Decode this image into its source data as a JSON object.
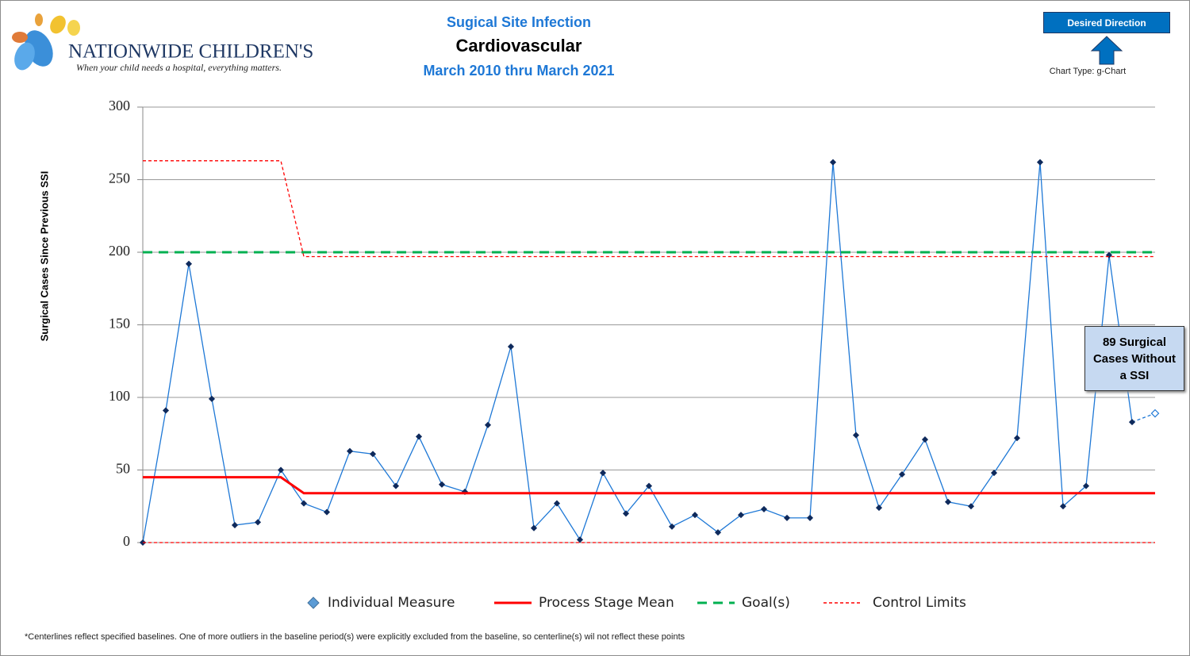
{
  "header": {
    "logo": "NATIONWIDE CHILDREN'S",
    "tagline": "When your child needs a hospital, everything matters.",
    "desired_direction": "Desired Direction",
    "chart_type_label": "Chart Type: g-Chart"
  },
  "chart_data": {
    "type": "line",
    "pretitle": "Sugical Site Infection",
    "title": "Cardiovascular",
    "subtitle": "March 2010 thru March 2021",
    "y_label": "Surgical Cases Since Previous SSI",
    "ylim": [
      0,
      300
    ],
    "yticks": [
      0,
      50,
      100,
      150,
      200,
      250,
      300
    ],
    "grid": true,
    "categories": [
      null,
      null,
      null,
      null,
      null,
      null,
      null,
      null,
      null,
      null,
      null,
      null,
      null,
      null,
      null,
      null,
      null,
      null,
      null,
      null,
      null,
      null,
      null,
      null,
      null,
      null,
      null,
      null,
      null,
      null,
      null,
      null,
      null,
      null,
      null,
      null,
      null,
      null,
      null,
      null,
      null,
      null,
      null,
      null,
      null
    ],
    "series": [
      {
        "name": "Individual Measure",
        "color": "#1e78d6",
        "marker_color": "#0f2a5c",
        "style": "marker",
        "values": [
          0,
          91,
          192,
          99,
          12,
          14,
          50,
          27,
          21,
          63,
          61,
          39,
          73,
          40,
          35,
          81,
          135,
          10,
          27,
          2,
          48,
          20,
          39,
          11,
          19,
          7,
          19,
          23,
          17,
          17,
          262,
          74,
          24,
          47,
          71,
          28,
          25,
          48,
          72,
          262,
          25,
          39,
          198,
          83,
          89
        ]
      },
      {
        "name": "Process Stage Mean",
        "color": "#ff0000",
        "style": "solid",
        "values": [
          45,
          45,
          45,
          45,
          45,
          45,
          45,
          34,
          34,
          34,
          34,
          34,
          34,
          34,
          34,
          34,
          34,
          34,
          34,
          34,
          34,
          34,
          34,
          34,
          34,
          34,
          34,
          34,
          34,
          34,
          34,
          34,
          34,
          34,
          34,
          34,
          34,
          34,
          34,
          34,
          34,
          34,
          34,
          34,
          34
        ]
      },
      {
        "name": "Goal(s)",
        "color": "#00b050",
        "style": "dashed",
        "values": [
          200,
          200,
          200,
          200,
          200,
          200,
          200,
          200,
          200,
          200,
          200,
          200,
          200,
          200,
          200,
          200,
          200,
          200,
          200,
          200,
          200,
          200,
          200,
          200,
          200,
          200,
          200,
          200,
          200,
          200,
          200,
          200,
          200,
          200,
          200,
          200,
          200,
          200,
          200,
          200,
          200,
          200,
          200,
          200,
          200
        ]
      },
      {
        "name": "Control Limits",
        "color": "#ff0000",
        "style": "dotted",
        "upper": [
          263,
          263,
          263,
          263,
          263,
          263,
          263,
          197,
          197,
          197,
          197,
          197,
          197,
          197,
          197,
          197,
          197,
          197,
          197,
          197,
          197,
          197,
          197,
          197,
          197,
          197,
          197,
          197,
          197,
          197,
          197,
          197,
          197,
          197,
          197,
          197,
          197,
          197,
          197,
          197,
          197,
          197,
          197,
          197,
          197
        ],
        "lower": [
          0,
          0,
          0,
          0,
          0,
          0,
          0,
          0,
          0,
          0,
          0,
          0,
          0,
          0,
          0,
          0,
          0,
          0,
          0,
          0,
          0,
          0,
          0,
          0,
          0,
          0,
          0,
          0,
          0,
          0,
          0,
          0,
          0,
          0,
          0,
          0,
          0,
          0,
          0,
          0,
          0,
          0,
          0,
          0,
          0
        ]
      }
    ],
    "annotation": "89 Surgical Cases Without a SSI"
  },
  "footnote": "*Centerlines reflect specified baselines. One of more outliers in the baseline period(s) were explicitly excluded from the baseline, so centerline(s) wil not reflect these points"
}
